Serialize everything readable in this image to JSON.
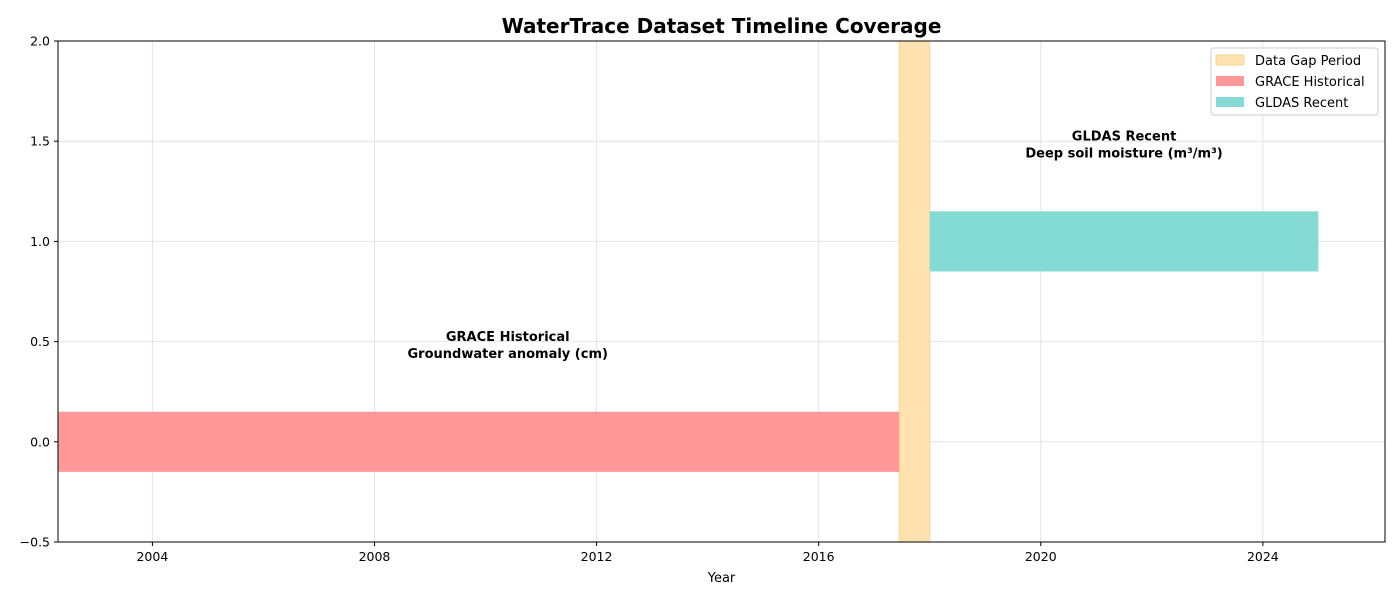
{
  "chart_data": {
    "type": "bar",
    "orientation": "horizontal-timeline",
    "title": "WaterTrace Dataset Timeline Coverage",
    "xlabel": "Year",
    "ylabel": "",
    "xlim": [
      2002.3,
      2026.2
    ],
    "ylim": [
      -0.5,
      2.0
    ],
    "x_ticks": [
      2004,
      2008,
      2012,
      2016,
      2020,
      2024
    ],
    "y_ticks": [
      -0.5,
      0.0,
      0.5,
      1.0,
      1.5,
      2.0
    ],
    "y_tick_labels": [
      "−0.5",
      "0.0",
      "0.5",
      "1.0",
      "1.5",
      "2.0"
    ],
    "grid": true,
    "legend_position": "top-right",
    "gap_period": {
      "name": "Data Gap Period",
      "start": 2017.45,
      "end": 2018.0,
      "color": "#ffe2b0"
    },
    "series": [
      {
        "name": "GRACE Historical",
        "start": 2002.3,
        "end": 2017.45,
        "y": 0.0,
        "height": 0.3,
        "color": "#ff9999",
        "annotation_x": 2010.4,
        "annotation_y": 0.5,
        "annotation": [
          "GRACE Historical",
          "Groundwater anomaly (cm)"
        ]
      },
      {
        "name": "GLDAS Recent",
        "start": 2018.0,
        "end": 2025.0,
        "y": 1.0,
        "height": 0.3,
        "color": "#84dbd5",
        "annotation_x": 2021.5,
        "annotation_y": 1.5,
        "annotation": [
          "GLDAS Recent",
          "Deep soil moisture (m³/m³)"
        ]
      }
    ]
  }
}
